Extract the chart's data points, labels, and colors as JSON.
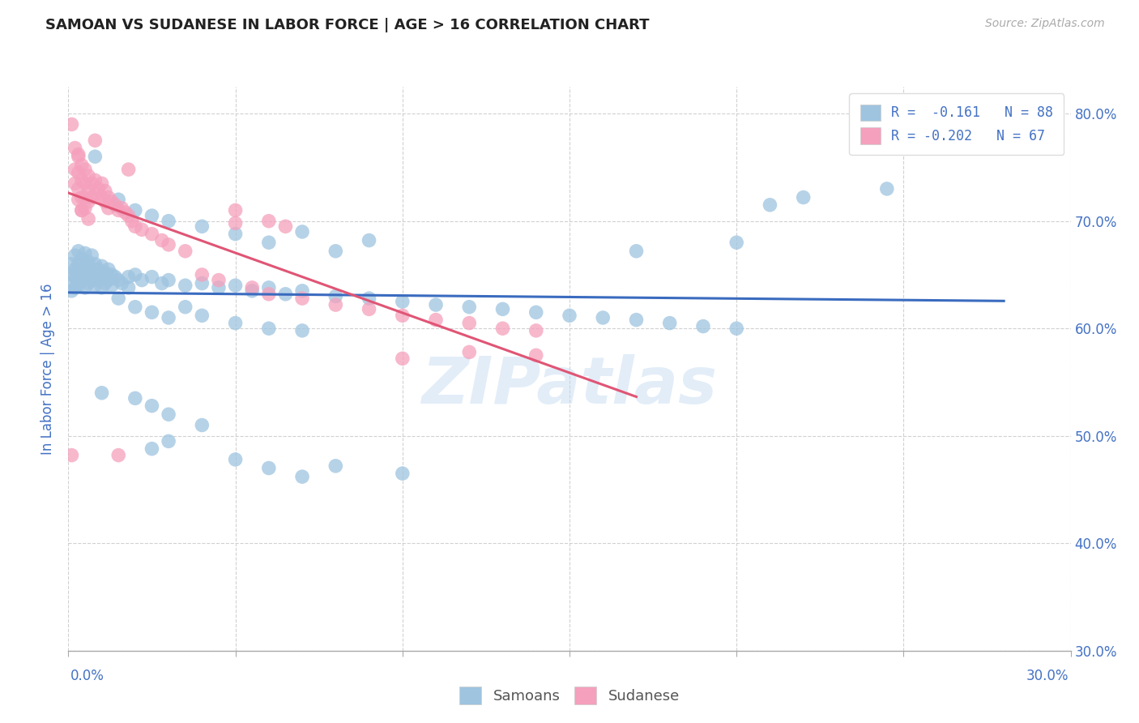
{
  "title": "SAMOAN VS SUDANESE IN LABOR FORCE | AGE > 16 CORRELATION CHART",
  "source": "Source: ZipAtlas.com",
  "ylabel_label": "In Labor Force | Age > 16",
  "xmin": 0.0,
  "xmax": 0.3,
  "ymin": 0.3,
  "ymax": 0.825,
  "watermark": "ZIPatlas",
  "samoan_color": "#9ec4e0",
  "sudanese_color": "#f5a0bc",
  "samoan_trend_color": "#3a6bbf",
  "sudanese_trend_color": "#e05575",
  "background_color": "#ffffff",
  "grid_color": "#cccccc",
  "title_color": "#222222",
  "axis_label_color": "#4472c4",
  "samoan_points": [
    [
      0.001,
      0.66
    ],
    [
      0.001,
      0.65
    ],
    [
      0.001,
      0.642
    ],
    [
      0.001,
      0.635
    ],
    [
      0.002,
      0.668
    ],
    [
      0.002,
      0.655
    ],
    [
      0.002,
      0.648
    ],
    [
      0.002,
      0.638
    ],
    [
      0.003,
      0.672
    ],
    [
      0.003,
      0.66
    ],
    [
      0.003,
      0.65
    ],
    [
      0.003,
      0.64
    ],
    [
      0.004,
      0.665
    ],
    [
      0.004,
      0.655
    ],
    [
      0.004,
      0.645
    ],
    [
      0.005,
      0.67
    ],
    [
      0.005,
      0.658
    ],
    [
      0.005,
      0.648
    ],
    [
      0.005,
      0.638
    ],
    [
      0.006,
      0.662
    ],
    [
      0.006,
      0.652
    ],
    [
      0.006,
      0.642
    ],
    [
      0.007,
      0.668
    ],
    [
      0.007,
      0.655
    ],
    [
      0.007,
      0.645
    ],
    [
      0.008,
      0.66
    ],
    [
      0.008,
      0.65
    ],
    [
      0.008,
      0.64
    ],
    [
      0.009,
      0.655
    ],
    [
      0.009,
      0.645
    ],
    [
      0.01,
      0.658
    ],
    [
      0.01,
      0.648
    ],
    [
      0.01,
      0.638
    ],
    [
      0.011,
      0.652
    ],
    [
      0.011,
      0.642
    ],
    [
      0.012,
      0.655
    ],
    [
      0.012,
      0.645
    ],
    [
      0.013,
      0.65
    ],
    [
      0.013,
      0.64
    ],
    [
      0.014,
      0.648
    ],
    [
      0.015,
      0.645
    ],
    [
      0.016,
      0.642
    ],
    [
      0.018,
      0.648
    ],
    [
      0.018,
      0.638
    ],
    [
      0.02,
      0.65
    ],
    [
      0.022,
      0.645
    ],
    [
      0.025,
      0.648
    ],
    [
      0.028,
      0.642
    ],
    [
      0.03,
      0.645
    ],
    [
      0.035,
      0.64
    ],
    [
      0.04,
      0.642
    ],
    [
      0.045,
      0.638
    ],
    [
      0.05,
      0.64
    ],
    [
      0.055,
      0.635
    ],
    [
      0.06,
      0.638
    ],
    [
      0.065,
      0.632
    ],
    [
      0.07,
      0.635
    ],
    [
      0.08,
      0.63
    ],
    [
      0.09,
      0.628
    ],
    [
      0.1,
      0.625
    ],
    [
      0.11,
      0.622
    ],
    [
      0.12,
      0.62
    ],
    [
      0.13,
      0.618
    ],
    [
      0.14,
      0.615
    ],
    [
      0.15,
      0.612
    ],
    [
      0.16,
      0.61
    ],
    [
      0.17,
      0.608
    ],
    [
      0.18,
      0.605
    ],
    [
      0.19,
      0.602
    ],
    [
      0.2,
      0.6
    ],
    [
      0.008,
      0.76
    ],
    [
      0.015,
      0.72
    ],
    [
      0.02,
      0.71
    ],
    [
      0.025,
      0.705
    ],
    [
      0.03,
      0.7
    ],
    [
      0.04,
      0.695
    ],
    [
      0.05,
      0.688
    ],
    [
      0.06,
      0.68
    ],
    [
      0.07,
      0.69
    ],
    [
      0.08,
      0.672
    ],
    [
      0.09,
      0.682
    ],
    [
      0.015,
      0.628
    ],
    [
      0.02,
      0.62
    ],
    [
      0.025,
      0.615
    ],
    [
      0.03,
      0.61
    ],
    [
      0.035,
      0.62
    ],
    [
      0.04,
      0.612
    ],
    [
      0.05,
      0.605
    ],
    [
      0.06,
      0.6
    ],
    [
      0.07,
      0.598
    ],
    [
      0.01,
      0.54
    ],
    [
      0.02,
      0.535
    ],
    [
      0.025,
      0.488
    ],
    [
      0.03,
      0.495
    ],
    [
      0.04,
      0.51
    ],
    [
      0.05,
      0.478
    ],
    [
      0.06,
      0.47
    ],
    [
      0.07,
      0.462
    ],
    [
      0.08,
      0.472
    ],
    [
      0.1,
      0.465
    ],
    [
      0.025,
      0.528
    ],
    [
      0.03,
      0.52
    ],
    [
      0.22,
      0.722
    ],
    [
      0.245,
      0.73
    ],
    [
      0.21,
      0.715
    ],
    [
      0.2,
      0.68
    ],
    [
      0.17,
      0.672
    ]
  ],
  "sudanese_points": [
    [
      0.001,
      0.79
    ],
    [
      0.002,
      0.768
    ],
    [
      0.002,
      0.748
    ],
    [
      0.002,
      0.735
    ],
    [
      0.003,
      0.762
    ],
    [
      0.003,
      0.745
    ],
    [
      0.003,
      0.73
    ],
    [
      0.003,
      0.72
    ],
    [
      0.004,
      0.752
    ],
    [
      0.004,
      0.738
    ],
    [
      0.004,
      0.722
    ],
    [
      0.004,
      0.71
    ],
    [
      0.005,
      0.748
    ],
    [
      0.005,
      0.735
    ],
    [
      0.005,
      0.722
    ],
    [
      0.005,
      0.712
    ],
    [
      0.006,
      0.742
    ],
    [
      0.006,
      0.728
    ],
    [
      0.006,
      0.718
    ],
    [
      0.007,
      0.735
    ],
    [
      0.007,
      0.722
    ],
    [
      0.008,
      0.738
    ],
    [
      0.008,
      0.725
    ],
    [
      0.009,
      0.73
    ],
    [
      0.01,
      0.735
    ],
    [
      0.01,
      0.722
    ],
    [
      0.011,
      0.728
    ],
    [
      0.011,
      0.718
    ],
    [
      0.012,
      0.722
    ],
    [
      0.013,
      0.718
    ],
    [
      0.014,
      0.715
    ],
    [
      0.015,
      0.71
    ],
    [
      0.016,
      0.712
    ],
    [
      0.017,
      0.708
    ],
    [
      0.018,
      0.705
    ],
    [
      0.018,
      0.748
    ],
    [
      0.019,
      0.7
    ],
    [
      0.02,
      0.695
    ],
    [
      0.022,
      0.692
    ],
    [
      0.025,
      0.688
    ],
    [
      0.028,
      0.682
    ],
    [
      0.03,
      0.678
    ],
    [
      0.035,
      0.672
    ],
    [
      0.04,
      0.65
    ],
    [
      0.045,
      0.645
    ],
    [
      0.05,
      0.698
    ],
    [
      0.055,
      0.638
    ],
    [
      0.06,
      0.632
    ],
    [
      0.06,
      0.7
    ],
    [
      0.065,
      0.695
    ],
    [
      0.07,
      0.628
    ],
    [
      0.08,
      0.622
    ],
    [
      0.09,
      0.618
    ],
    [
      0.1,
      0.612
    ],
    [
      0.11,
      0.608
    ],
    [
      0.12,
      0.605
    ],
    [
      0.13,
      0.6
    ],
    [
      0.14,
      0.598
    ],
    [
      0.001,
      0.482
    ],
    [
      0.015,
      0.482
    ],
    [
      0.12,
      0.578
    ],
    [
      0.14,
      0.575
    ],
    [
      0.05,
      0.71
    ],
    [
      0.008,
      0.775
    ],
    [
      0.003,
      0.76
    ],
    [
      0.004,
      0.71
    ],
    [
      0.006,
      0.702
    ],
    [
      0.012,
      0.712
    ],
    [
      0.1,
      0.572
    ]
  ]
}
